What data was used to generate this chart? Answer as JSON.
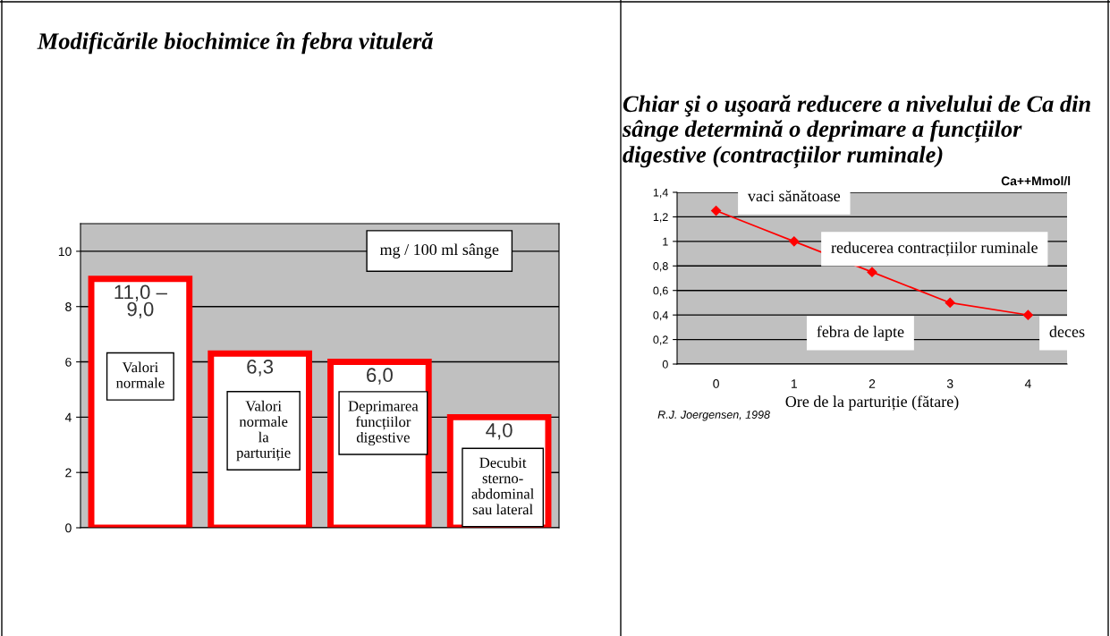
{
  "chart_data": [
    {
      "type": "bar",
      "title": "Modificările biochimice în febra vituleră",
      "categories": [
        null,
        null,
        null,
        null
      ],
      "values": [
        9.0,
        6.3,
        6.0,
        4.0
      ],
      "value_labels": [
        "11,0 –\n9,0",
        "6,3",
        "6,0",
        "4,0"
      ],
      "color": "#ff0000",
      "ylim": [
        0,
        11
      ],
      "yticks": [
        0,
        2,
        4,
        6,
        8,
        10
      ],
      "grid": "y",
      "annotations": [
        "mg / 100 ml sânge",
        "Valori\nnormale",
        "Valori\nnormale\nla\nparturiție",
        "Deprimarea\nfuncțiilor\ndigestive",
        "Decubit\nsterno-\nabdominal\nsau lateral"
      ]
    },
    {
      "type": "line",
      "title": "Chiar şi o uşoară reducere a nivelului de Ca din sânge determină o deprimare a funcțiilor digestive (contracțiilor ruminale)",
      "xlabel": "Ore de la parturiție (fătare)",
      "categories": [
        "0",
        "1",
        "2",
        "3",
        "4"
      ],
      "values": [
        1.25,
        1.0,
        0.75,
        0.5,
        0.4
      ],
      "color": "#ff0000",
      "marker": "diamond",
      "ylim": [
        0,
        1.4
      ],
      "yticks": [
        0,
        {
          "value": 0.2,
          "label": "0,2"
        },
        {
          "value": 0.4,
          "label": "0,4"
        },
        {
          "value": 0.6,
          "label": "0,6"
        },
        {
          "value": 0.8,
          "label": "0,8"
        },
        1,
        {
          "value": 1.2,
          "label": "1,2"
        },
        {
          "value": 1.4,
          "label": "1,4"
        }
      ],
      "grid": "y",
      "annotations": [
        "Ca++Mmol/l",
        "vaci sănătoase",
        "reducerea contracțiilor ruminale",
        "febra de lapte",
        "deces",
        "R.J. Joergensen, 1998"
      ]
    }
  ]
}
